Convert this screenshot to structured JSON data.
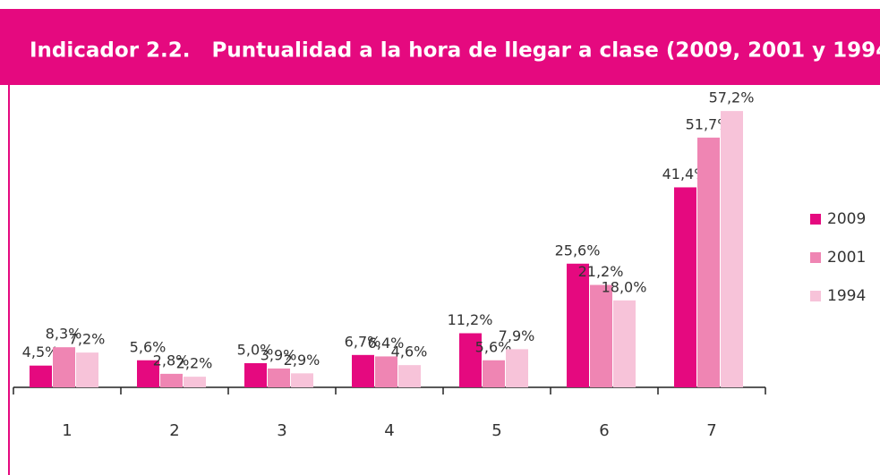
{
  "chart_data": {
    "type": "bar",
    "title": "Indicador 2.2.   Puntualidad a la hora de llegar a clase (2009, 2001 y 1994)",
    "categories": [
      "1",
      "2",
      "3",
      "4",
      "5",
      "6",
      "7"
    ],
    "series": [
      {
        "name": "2009",
        "color": "#e5097f",
        "values": [
          4.5,
          5.6,
          5.0,
          6.7,
          11.2,
          25.6,
          41.4
        ],
        "value_labels": [
          "4,5%",
          "5,6%",
          "5,0%",
          "6,7%",
          "11,2%",
          "25,6%",
          "41,4%"
        ]
      },
      {
        "name": "2001",
        "color": "#ef85b3",
        "values": [
          8.3,
          2.8,
          3.9,
          6.4,
          5.6,
          21.2,
          51.7
        ],
        "value_labels": [
          "8,3%",
          "2,8%",
          "3,9%",
          "6,4%",
          "5,6%",
          "21,2%",
          "51,7%"
        ]
      },
      {
        "name": "1994",
        "color": "#f7c3d9",
        "values": [
          7.2,
          2.2,
          2.9,
          4.6,
          7.9,
          18.0,
          57.2
        ],
        "value_labels": [
          "7,2%",
          "2,2%",
          "2,9%",
          "4,6%",
          "7,9%",
          "18,0%",
          "57,2%"
        ]
      }
    ],
    "ylim": [
      0,
      60
    ],
    "legend": "right"
  }
}
